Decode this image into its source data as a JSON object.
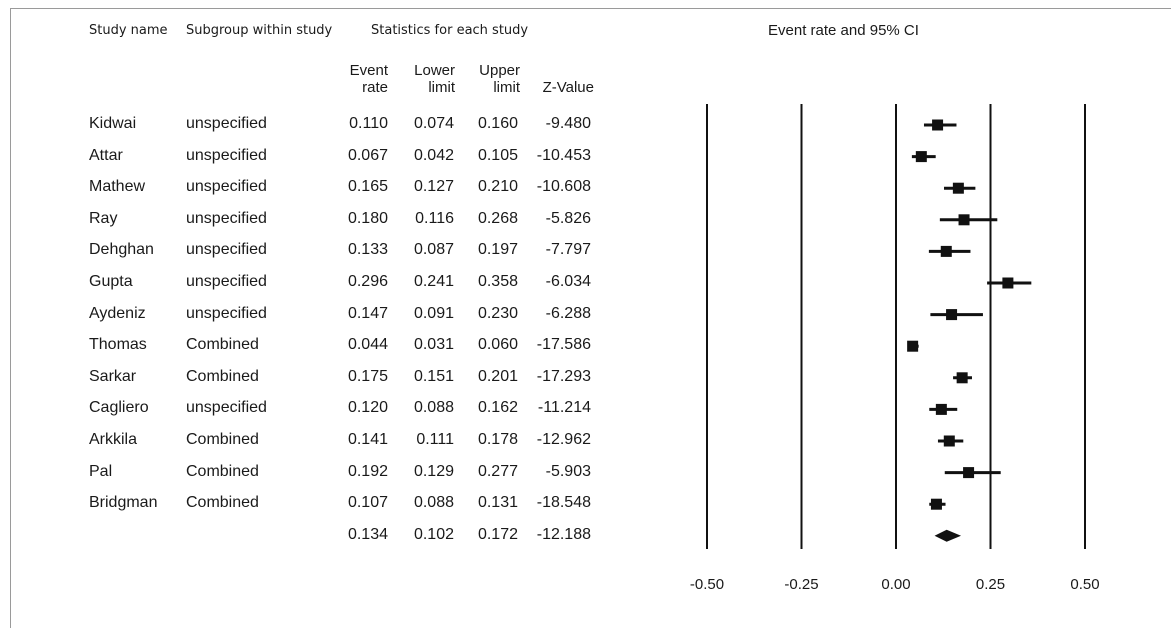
{
  "header": {
    "study_name": "Study name",
    "subgroup": "Subgroup within study",
    "statistics": "Statistics for each study",
    "plot_title": "Event rate and 95% CI"
  },
  "columns": {
    "event_rate_1": "Event",
    "event_rate_2": "rate",
    "lower_1": "Lower",
    "lower_2": "limit",
    "upper_1": "Upper",
    "upper_2": "limit",
    "z": "Z-Value"
  },
  "chart_data": {
    "type": "forest",
    "title": "Event rate and 95% CI",
    "xlim": [
      -0.5,
      0.5
    ],
    "ticks": [
      "-0.50",
      "-0.25",
      "0.00",
      "0.25",
      "0.50"
    ],
    "tick_values": [
      -0.5,
      -0.25,
      0.0,
      0.25,
      0.5
    ],
    "rows": [
      {
        "study": "Kidwai",
        "subgroup": "unspecified",
        "rate": "0.110",
        "lower": "0.074",
        "upper": "0.160",
        "z": "-9.480"
      },
      {
        "study": "Attar",
        "subgroup": "unspecified",
        "rate": "0.067",
        "lower": "0.042",
        "upper": "0.105",
        "z": "-10.453"
      },
      {
        "study": "Mathew",
        "subgroup": "unspecified",
        "rate": "0.165",
        "lower": "0.127",
        "upper": "0.210",
        "z": "-10.608"
      },
      {
        "study": "Ray",
        "subgroup": "unspecified",
        "rate": "0.180",
        "lower": "0.116",
        "upper": "0.268",
        "z": "-5.826"
      },
      {
        "study": "Dehghan",
        "subgroup": "unspecified",
        "rate": "0.133",
        "lower": "0.087",
        "upper": "0.197",
        "z": "-7.797"
      },
      {
        "study": "Gupta",
        "subgroup": "unspecified",
        "rate": "0.296",
        "lower": "0.241",
        "upper": "0.358",
        "z": "-6.034"
      },
      {
        "study": "Aydeniz",
        "subgroup": "unspecified",
        "rate": "0.147",
        "lower": "0.091",
        "upper": "0.230",
        "z": "-6.288"
      },
      {
        "study": "Thomas",
        "subgroup": "Combined",
        "rate": "0.044",
        "lower": "0.031",
        "upper": "0.060",
        "z": "-17.586"
      },
      {
        "study": "Sarkar",
        "subgroup": "Combined",
        "rate": "0.175",
        "lower": "0.151",
        "upper": "0.201",
        "z": "-17.293"
      },
      {
        "study": "Cagliero",
        "subgroup": "unspecified",
        "rate": "0.120",
        "lower": "0.088",
        "upper": "0.162",
        "z": "-11.214"
      },
      {
        "study": "Arkkila",
        "subgroup": "Combined",
        "rate": "0.141",
        "lower": "0.111",
        "upper": "0.178",
        "z": "-12.962"
      },
      {
        "study": "Pal",
        "subgroup": "Combined",
        "rate": "0.192",
        "lower": "0.129",
        "upper": "0.277",
        "z": "-5.903"
      },
      {
        "study": "Bridgman",
        "subgroup": "Combined",
        "rate": "0.107",
        "lower": "0.088",
        "upper": "0.131",
        "z": "-18.548"
      }
    ],
    "summary": {
      "rate": "0.134",
      "lower": "0.102",
      "upper": "0.172",
      "z": "-12.188"
    }
  }
}
